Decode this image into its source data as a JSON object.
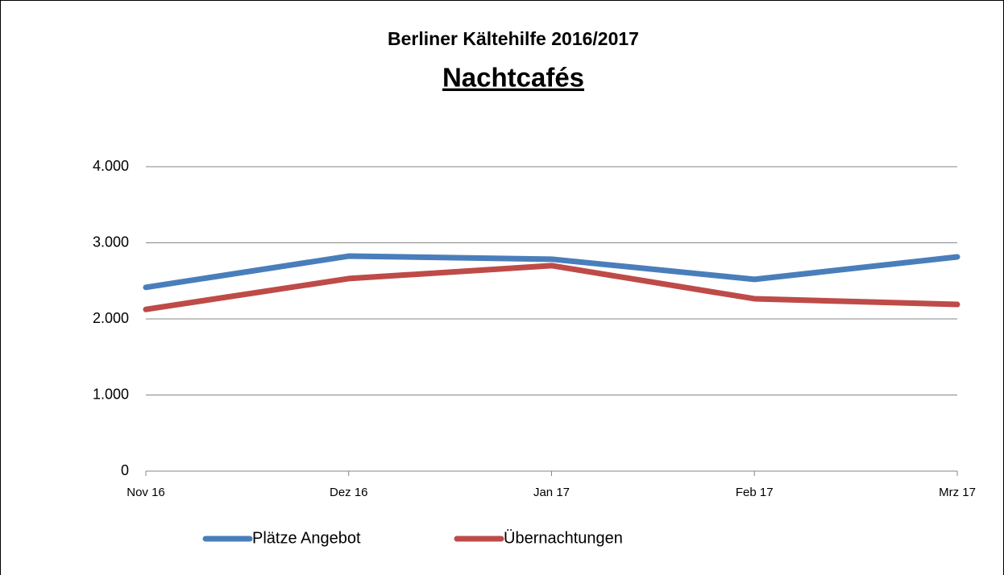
{
  "chart_data": {
    "type": "line",
    "title": "Berliner Kältehilfe 2016/2017",
    "subtitle": "Nachtcafés",
    "categories": [
      "Nov 16",
      "Dez 16",
      "Jan 17",
      "Feb 17",
      "Mrz 17"
    ],
    "series": [
      {
        "name": "Plätze Angebot",
        "color": "#4a7ebb",
        "values": [
          2415,
          2825,
          2785,
          2520,
          2815
        ]
      },
      {
        "name": "Übernachtungen",
        "color": "#be4b48",
        "values": [
          2125,
          2530,
          2700,
          2265,
          2190
        ]
      }
    ],
    "ylim": [
      0,
      4000
    ],
    "yticks": [
      0,
      {
        "value": 1000,
        "label": "1.000"
      },
      {
        "value": 2000,
        "label": "2.000"
      },
      {
        "value": 3000,
        "label": "3.000"
      },
      {
        "value": 4000,
        "label": "4.000"
      }
    ],
    "grid": true,
    "legend": "bottom"
  }
}
